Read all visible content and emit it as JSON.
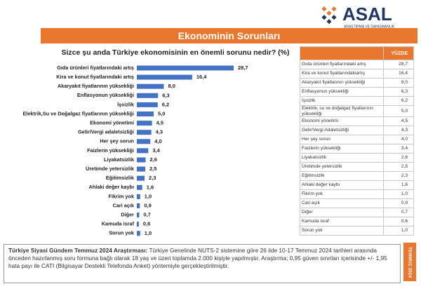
{
  "logo": {
    "name": "ASAL",
    "tagline": "ARAŞTIRMA VE DANIŞMANLIK"
  },
  "banner": "Ekonominin Sorunları",
  "chart_data": {
    "type": "bar",
    "orientation": "horizontal",
    "title": "Sizce şu anda Türkiye ekonomisinin  en önemli sorunu nedir? (%)",
    "color": "#4472c4",
    "categories": [
      "Gıda ürünleri fiyatlarındaki artış",
      "Kira ve konut fiyatlarındaki artış",
      "Akaryakıt fiyatlarının yüksekliği",
      "Enflasyonun yüksekliği",
      "İşsizlik",
      "Elektrik,Su ve Doğalgaz fiyatlarının yüksekliği",
      "Ekonomi yönetimi",
      "Gelir/Vergi adaletsizliği",
      "Her şey sorun",
      "Faizlerin yüksekliği",
      "Liyakatsizlik",
      "Üretimde yetersizlik",
      "Eğitimsizlik",
      "Ahlaki değer kaybı",
      "Fikrim yok",
      "Cari açık",
      "Diğer",
      "Kamuda israf",
      "Sorun yok"
    ],
    "values": [
      28.7,
      16.4,
      8.0,
      6.3,
      6.2,
      5.0,
      4.5,
      4.3,
      4.0,
      3.4,
      2.6,
      2.5,
      2.3,
      1.6,
      1.0,
      0.9,
      0.7,
      0.6,
      1.0
    ],
    "value_labels": [
      "28,7",
      "16,4",
      "8,0",
      "6,3",
      "6,2",
      "5,0",
      "4,5",
      "4,3",
      "4,0",
      "3,4",
      "2,6",
      "2,5",
      "2,3",
      "1,6",
      "1,0",
      "0,9",
      "0,7",
      "0,6",
      "1,0"
    ]
  },
  "table": {
    "header": "YÜZDE",
    "rows": [
      [
        "Gıda ürünleri fiyatlarındaki artış",
        "28,7"
      ],
      [
        "Kira ve konut fiyatlarındakiartış",
        "16,4"
      ],
      [
        "Akaryakıt fiyatlarının yüksekliği",
        "8,0"
      ],
      [
        "Enflasyonun yüksekliği",
        "6,3"
      ],
      [
        "İşsizlik",
        "6,2"
      ],
      [
        "Elektrik, su ve doğalgaz fiyatlarının yüksekliği",
        "5,0"
      ],
      [
        "Ekonomi yönetimi",
        "4,5"
      ],
      [
        "Gelir/Vergi Adaletsizliği",
        "4,3"
      ],
      [
        "Her şey sorun",
        "4,0"
      ],
      [
        "Faizlerin yüksekliği",
        "3,4"
      ],
      [
        "Liyakatsizlik",
        "2,6"
      ],
      [
        "Üretimde yetersizlik",
        "2,5"
      ],
      [
        "Eğitimsizlik",
        "2,3"
      ],
      [
        "Ahlaki değer kaybı",
        "1,6"
      ],
      [
        "Fikrim yok",
        "1,0"
      ],
      [
        "Cari açık",
        "0,9"
      ],
      [
        "Diğer",
        "0,7"
      ],
      [
        "Kamuda israf",
        "0,6"
      ],
      [
        "Sorun yok",
        "1,0"
      ]
    ]
  },
  "footer": {
    "lead": "Türkiye Siyasi Gündem Temmuz 2024 Araştırması:",
    "text": "Türkiye Genelinde NUTS-2 sistemine göre 26 ilde 10-17 Temmuz 2024 tarihleri arasında önceden hazırlanmış soru formuna bağlı olarak 18 yaş ve üzeri toplamda 2.000 kişiyle yapılmıştır. Araştırma; 0,95 güven sınırları içerisinde +/- 1,95 hata payı ile CATI (Bilgisayar Destekli Telefonda Anket) yöntemiyle gerçekleştirilmiştir."
  },
  "side_label": "TEMMUZ 2024"
}
